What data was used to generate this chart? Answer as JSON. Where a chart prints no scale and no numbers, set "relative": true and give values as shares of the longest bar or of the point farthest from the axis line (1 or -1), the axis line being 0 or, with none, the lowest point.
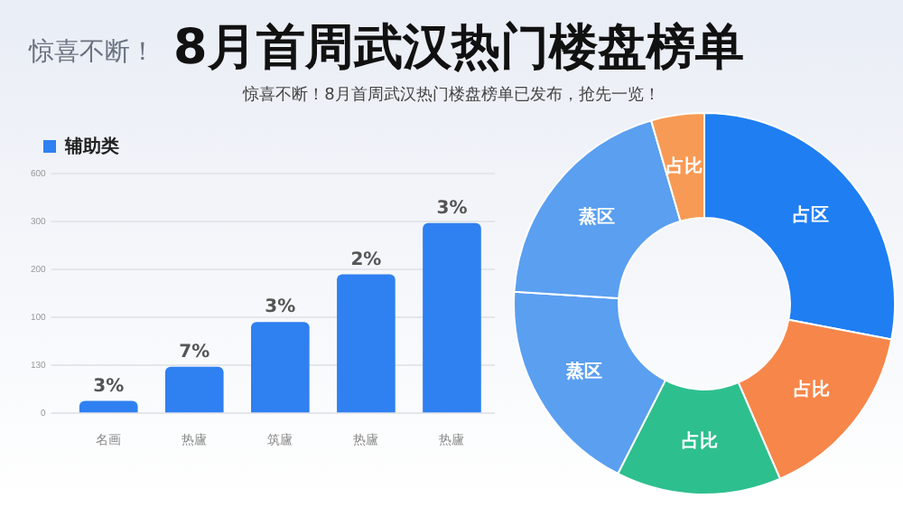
{
  "chart_data": [
    {
      "type": "bar",
      "title": "8月首周武汉热门楼盘榜单",
      "subtitle": "惊喜不断！8月首周武汉热门楼盘榜单已发布，抢先一览！",
      "annotations": [
        "惊喜不断！",
        "0",
        "130",
        "100",
        "200",
        "300",
        "600"
      ],
      "relative": true,
      "categories": [
        "名画",
        "热廬",
        "筑廬",
        "热廬",
        "热廬"
      ],
      "series": [
        {
          "name": "辅助类",
          "color": "#2f80f0",
          "values": [
            0.065,
            0.244,
            0.48,
            0.73,
            1
          ]
        }
      ],
      "value_labels": [
        "3%",
        "7%",
        "3%",
        "2%",
        "3%"
      ],
      "grid": "y",
      "legend": "top left"
    },
    {
      "type": "donut",
      "categories": [
        "占区",
        "占比",
        "占比",
        "蒸区",
        "蒸区",
        "占比"
      ],
      "values": [
        28,
        15.5,
        14,
        18.5,
        19.5,
        4.5
      ],
      "colors": [
        "#1f7ef2",
        "#f7864a",
        "#2ebf8e",
        "#5a9ff0",
        "#5a9ff0",
        "#f79a55"
      ],
      "legend": false
    }
  ]
}
